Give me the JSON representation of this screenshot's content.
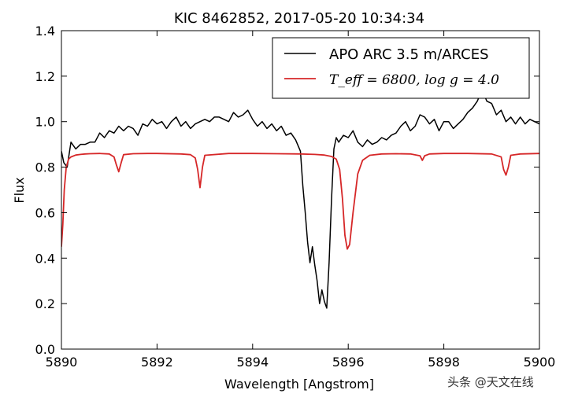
{
  "watermark": "头条 @天文在线",
  "chart_data": {
    "type": "line",
    "title": "KIC 8462852, 2017-05-20 10:34:34",
    "xlabel": "Wavelength [Angstrom]",
    "ylabel": "Flux",
    "xlim": [
      5890,
      5900
    ],
    "ylim": [
      0.0,
      1.4
    ],
    "xticks": [
      "5890",
      "5892",
      "5894",
      "5896",
      "5898",
      "5900"
    ],
    "yticks": [
      "0.0",
      "0.2",
      "0.4",
      "0.6",
      "0.8",
      "1.0",
      "1.2",
      "1.4"
    ],
    "grid": false,
    "legend_position": "top-right",
    "series": [
      {
        "name": "APO ARC 3.5 m/ARCES",
        "color": "#000000",
        "x": [
          5890.0,
          5890.05,
          5890.12,
          5890.2,
          5890.3,
          5890.4,
          5890.5,
          5890.6,
          5890.7,
          5890.8,
          5890.9,
          5891.0,
          5891.1,
          5891.2,
          5891.3,
          5891.4,
          5891.5,
          5891.6,
          5891.7,
          5891.8,
          5891.9,
          5892.0,
          5892.1,
          5892.2,
          5892.3,
          5892.4,
          5892.5,
          5892.6,
          5892.7,
          5892.8,
          5892.9,
          5893.0,
          5893.1,
          5893.2,
          5893.3,
          5893.4,
          5893.5,
          5893.6,
          5893.7,
          5893.8,
          5893.9,
          5894.0,
          5894.1,
          5894.2,
          5894.3,
          5894.4,
          5894.5,
          5894.6,
          5894.7,
          5894.8,
          5894.9,
          5895.0,
          5895.05,
          5895.1,
          5895.15,
          5895.2,
          5895.25,
          5895.3,
          5895.35,
          5895.4,
          5895.45,
          5895.5,
          5895.55,
          5895.6,
          5895.65,
          5895.7,
          5895.75,
          5895.8,
          5895.9,
          5896.0,
          5896.1,
          5896.2,
          5896.3,
          5896.4,
          5896.5,
          5896.6,
          5896.7,
          5896.8,
          5896.9,
          5897.0,
          5897.1,
          5897.2,
          5897.3,
          5897.4,
          5897.5,
          5897.6,
          5897.7,
          5897.8,
          5897.9,
          5898.0,
          5898.1,
          5898.2,
          5898.3,
          5898.4,
          5898.5,
          5898.6,
          5898.7,
          5898.8,
          5898.9,
          5899.0,
          5899.1,
          5899.2,
          5899.3,
          5899.4,
          5899.5,
          5899.6,
          5899.7,
          5899.8,
          5899.9,
          5900.0
        ],
        "y": [
          0.87,
          0.82,
          0.8,
          0.91,
          0.88,
          0.9,
          0.9,
          0.91,
          0.91,
          0.95,
          0.93,
          0.96,
          0.95,
          0.98,
          0.96,
          0.98,
          0.97,
          0.94,
          0.99,
          0.98,
          1.01,
          0.99,
          1.0,
          0.97,
          1.0,
          1.02,
          0.98,
          1.0,
          0.97,
          0.99,
          1.0,
          1.01,
          1.0,
          1.02,
          1.02,
          1.01,
          1.0,
          1.04,
          1.02,
          1.03,
          1.05,
          1.01,
          0.98,
          1.0,
          0.97,
          0.99,
          0.96,
          0.98,
          0.94,
          0.95,
          0.92,
          0.87,
          0.72,
          0.6,
          0.47,
          0.38,
          0.45,
          0.37,
          0.3,
          0.2,
          0.26,
          0.21,
          0.18,
          0.38,
          0.66,
          0.88,
          0.93,
          0.91,
          0.94,
          0.93,
          0.96,
          0.91,
          0.89,
          0.92,
          0.9,
          0.91,
          0.93,
          0.92,
          0.94,
          0.95,
          0.98,
          1.0,
          0.96,
          0.98,
          1.03,
          1.02,
          0.99,
          1.01,
          0.96,
          1.0,
          1.0,
          0.97,
          0.99,
          1.01,
          1.04,
          1.06,
          1.09,
          1.14,
          1.09,
          1.08,
          1.03,
          1.05,
          1.0,
          1.02,
          0.99,
          1.02,
          0.99,
          1.01,
          1.0,
          0.99
        ]
      },
      {
        "name": "T_eff = 6800, log g = 4.0",
        "color": "#d62728",
        "x": [
          5890.0,
          5890.03,
          5890.06,
          5890.1,
          5890.15,
          5890.2,
          5890.3,
          5890.4,
          5890.5,
          5890.6,
          5890.8,
          5891.0,
          5891.1,
          5891.15,
          5891.2,
          5891.25,
          5891.3,
          5891.5,
          5891.8,
          5892.0,
          5892.5,
          5892.7,
          5892.8,
          5892.85,
          5892.9,
          5892.95,
          5893.0,
          5893.5,
          5894.0,
          5894.5,
          5895.0,
          5895.3,
          5895.5,
          5895.65,
          5895.75,
          5895.82,
          5895.88,
          5895.93,
          5895.98,
          5896.03,
          5896.1,
          5896.2,
          5896.3,
          5896.45,
          5896.7,
          5897.0,
          5897.3,
          5897.5,
          5897.55,
          5897.6,
          5897.7,
          5898.0,
          5898.5,
          5899.0,
          5899.2,
          5899.25,
          5899.3,
          5899.35,
          5899.4,
          5899.6,
          5900.0
        ],
        "y": [
          0.45,
          0.55,
          0.7,
          0.8,
          0.835,
          0.845,
          0.853,
          0.856,
          0.858,
          0.859,
          0.86,
          0.858,
          0.845,
          0.81,
          0.78,
          0.82,
          0.855,
          0.859,
          0.86,
          0.86,
          0.858,
          0.855,
          0.84,
          0.79,
          0.71,
          0.8,
          0.852,
          0.86,
          0.86,
          0.859,
          0.858,
          0.856,
          0.853,
          0.847,
          0.835,
          0.79,
          0.66,
          0.5,
          0.44,
          0.46,
          0.6,
          0.77,
          0.83,
          0.852,
          0.858,
          0.859,
          0.858,
          0.85,
          0.83,
          0.85,
          0.858,
          0.86,
          0.86,
          0.858,
          0.845,
          0.79,
          0.765,
          0.8,
          0.852,
          0.858,
          0.86
        ]
      }
    ],
    "legend": [
      {
        "text": "APO ARC 3.5 m/ARCES",
        "color": "#000000",
        "math": false
      },
      {
        "text": "T_eff = 6800, log g = 4.0",
        "color": "#d62728",
        "math": true
      }
    ]
  }
}
